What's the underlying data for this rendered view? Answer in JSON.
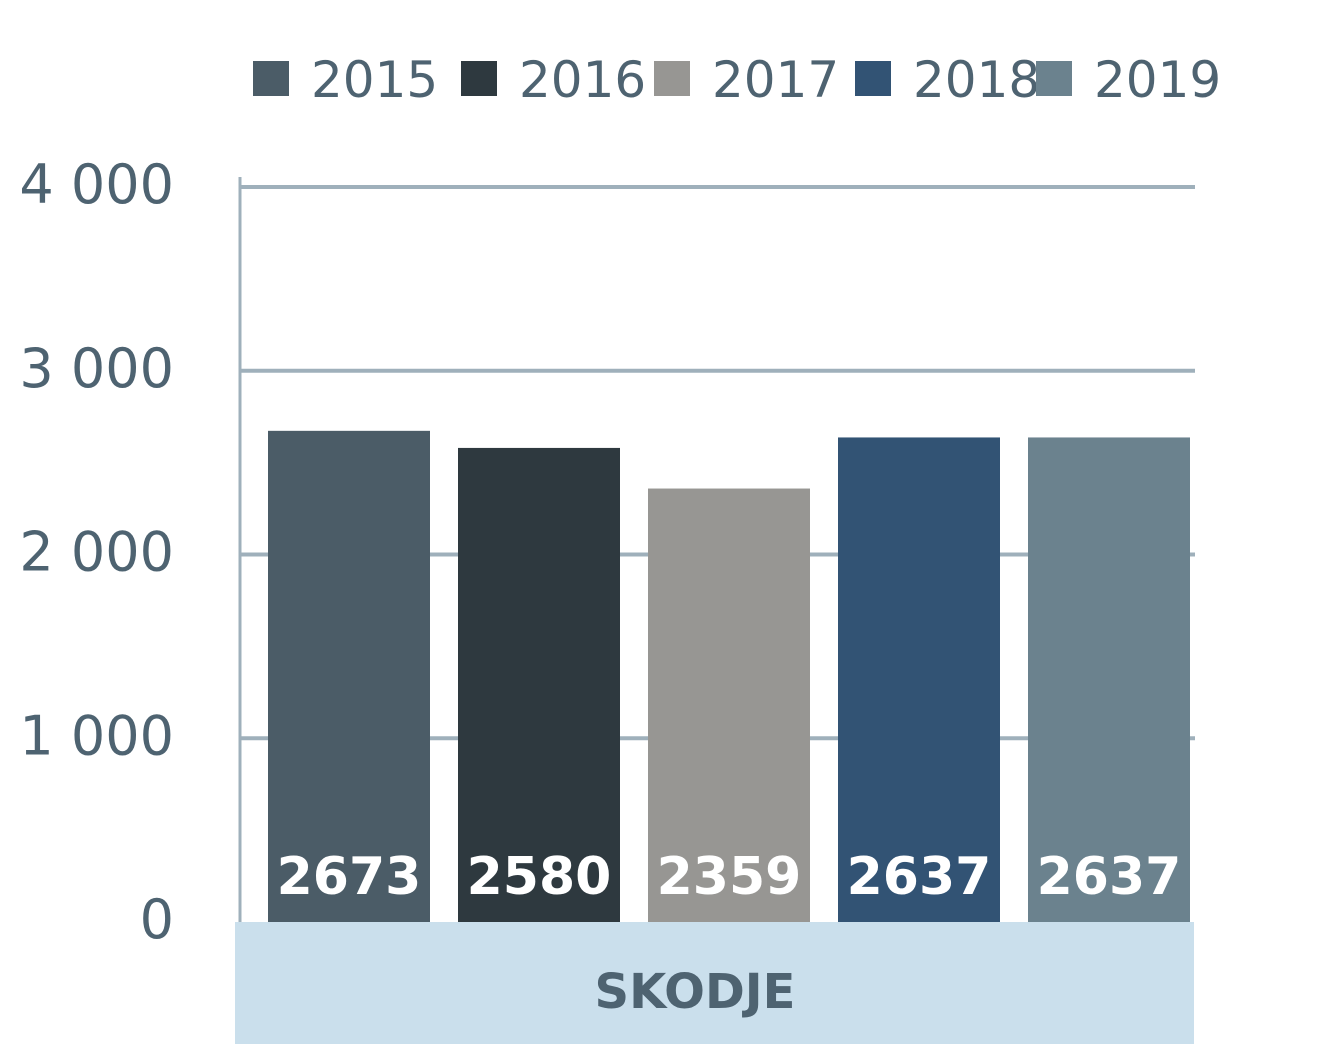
{
  "chart_data": {
    "type": "bar",
    "title": "",
    "xlabel": "",
    "ylabel": "",
    "categories": [
      "SKODJE"
    ],
    "ylim": [
      0,
      4000
    ],
    "yticks": [
      0,
      1000,
      2000,
      3000,
      4000
    ],
    "ytick_labels": [
      "0",
      "1 000",
      "2 000",
      "3 000",
      "4 000"
    ],
    "grid": true,
    "legend_position": "top",
    "series": [
      {
        "name": "2015",
        "values": [
          2673
        ],
        "label": "2673",
        "color": "#4b5c67"
      },
      {
        "name": "2016",
        "values": [
          2580
        ],
        "label": "2580",
        "color": "#2e393f"
      },
      {
        "name": "2017",
        "values": [
          2359
        ],
        "label": "2359",
        "color": "#979693"
      },
      {
        "name": "2018",
        "values": [
          2637
        ],
        "label": "2637",
        "color": "#325374"
      },
      {
        "name": "2019",
        "values": [
          2637
        ],
        "label": "2637",
        "color": "#6b828e"
      }
    ],
    "colors": {
      "grid": "#9fb0bb",
      "axis_text": "#4e6371",
      "category_band": "#cadfec",
      "category_text": "#4e6371",
      "bar_label": "#ffffff"
    }
  }
}
